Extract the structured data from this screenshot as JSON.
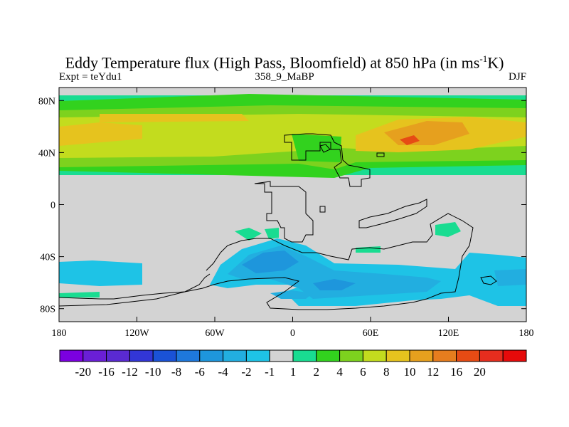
{
  "title_main": "Eddy Temperature flux (High Pass, Bloomfield) at 850 hPa (in ms",
  "title_sup": "-1",
  "title_end": "K)",
  "subtitle_left": "Expt = teYdu1",
  "subtitle_center": "358_9_MaBP",
  "subtitle_right": "DJF",
  "colors": {
    "land_missing": "#d3d3d3",
    "coast": "#000000"
  },
  "map": {
    "lon_range": [
      -180,
      180
    ],
    "lat_range": [
      -90,
      90
    ],
    "lon_ticks": [
      {
        "value": -180,
        "label": "180"
      },
      {
        "value": -120,
        "label": "120W"
      },
      {
        "value": -60,
        "label": "60W"
      },
      {
        "value": 0,
        "label": "0"
      },
      {
        "value": 60,
        "label": "60E"
      },
      {
        "value": 120,
        "label": "120E"
      },
      {
        "value": 180,
        "label": "180"
      }
    ],
    "lat_ticks": [
      {
        "value": 80,
        "label": "80N"
      },
      {
        "value": 40,
        "label": "40N"
      },
      {
        "value": 0,
        "label": "0"
      },
      {
        "value": -40,
        "label": "40S"
      },
      {
        "value": -80,
        "label": "80S"
      }
    ]
  },
  "colorbar": {
    "colors": [
      "#7b00e0",
      "#6a1fd6",
      "#5a2ad2",
      "#3236d6",
      "#1a52d6",
      "#1e78dc",
      "#1e96dc",
      "#22aee0",
      "#1ec3e6",
      "#d3d3d3",
      "#19dc91",
      "#32d21e",
      "#7dd21e",
      "#c3dc1e",
      "#e6c31e",
      "#e6a01e",
      "#e67d1e",
      "#e64b14",
      "#e62d1e",
      "#e60a0a"
    ],
    "labels": [
      "-20",
      "-16",
      "-12",
      "-10",
      "-8",
      "-6",
      "-4",
      "-2",
      "-1",
      "1",
      "2",
      "4",
      "6",
      "8",
      "10",
      "12",
      "16",
      "20"
    ]
  }
}
